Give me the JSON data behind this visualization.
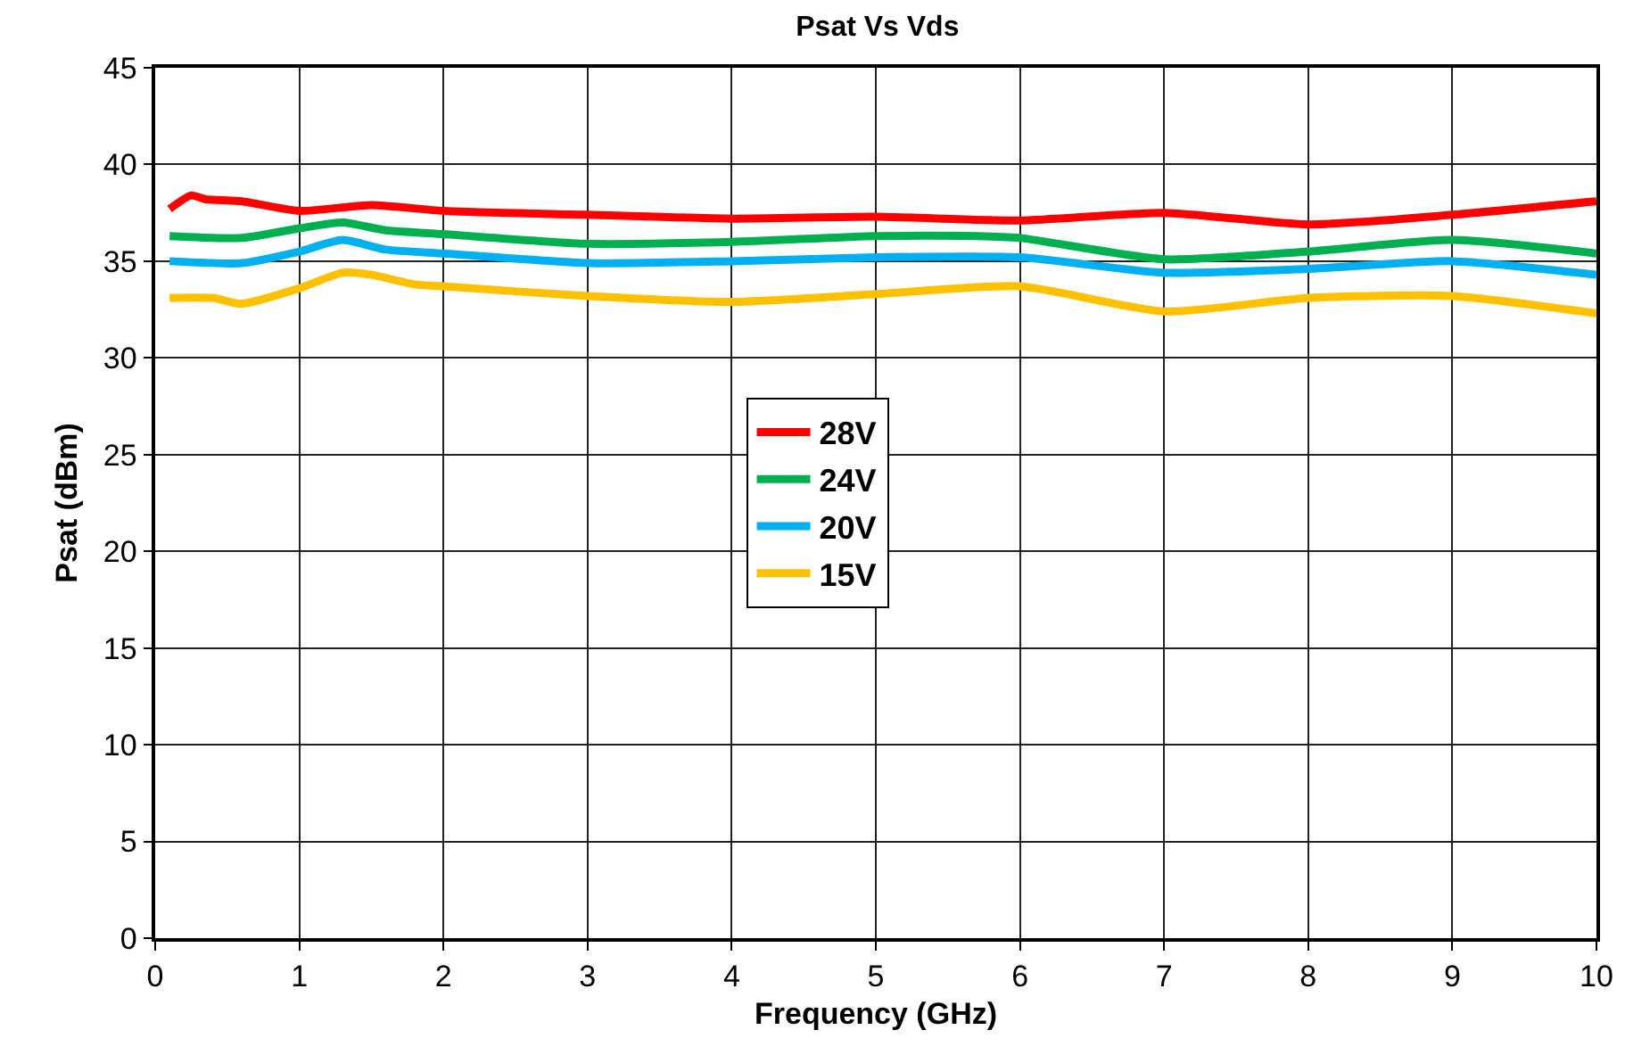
{
  "chart_data": {
    "type": "line",
    "title": "Psat Vs Vds",
    "xlabel": "Frequency (GHz)",
    "ylabel": "Psat (dBm)",
    "xlim": [
      0,
      10
    ],
    "xticks": [
      0,
      1,
      2,
      3,
      4,
      5,
      6,
      7,
      8,
      9,
      10
    ],
    "ylim": [
      0,
      45
    ],
    "yticks": [
      0,
      5,
      10,
      15,
      20,
      25,
      30,
      35,
      40,
      45
    ],
    "grid": true,
    "legend": "center",
    "marker": "none",
    "line_style": "solid",
    "series": [
      {
        "name": "28V",
        "color": "#ff0000",
        "x": [
          0.1,
          0.25,
          0.35,
          0.6,
          1,
          1.5,
          2,
          3,
          4,
          5,
          6,
          7,
          8,
          9,
          10
        ],
        "values": [
          37.7,
          38.4,
          38.2,
          38.1,
          37.6,
          37.9,
          37.6,
          37.4,
          37.2,
          37.3,
          37.1,
          37.5,
          36.9,
          37.4,
          38.1
        ]
      },
      {
        "name": "24V",
        "color": "#00b050",
        "x": [
          0.1,
          0.6,
          1,
          1.3,
          1.6,
          2,
          3,
          4,
          5,
          5.7,
          6,
          7,
          8,
          9,
          10
        ],
        "values": [
          36.3,
          36.2,
          36.7,
          37.0,
          36.6,
          36.4,
          35.9,
          36.0,
          36.3,
          36.3,
          36.2,
          35.1,
          35.5,
          36.1,
          35.4
        ]
      },
      {
        "name": "20V",
        "color": "#00b0f0",
        "x": [
          0.1,
          0.6,
          1,
          1.3,
          1.6,
          2,
          3,
          4,
          5,
          6,
          7,
          8,
          9,
          10
        ],
        "values": [
          35.0,
          34.9,
          35.5,
          36.1,
          35.6,
          35.4,
          34.9,
          35.0,
          35.2,
          35.2,
          34.4,
          34.6,
          35.0,
          34.3
        ]
      },
      {
        "name": "15V",
        "color": "#ffc000",
        "x": [
          0.1,
          0.4,
          0.6,
          1,
          1.3,
          1.5,
          1.8,
          2,
          3,
          4,
          5,
          6,
          7,
          8,
          9,
          10
        ],
        "values": [
          33.1,
          33.1,
          32.8,
          33.6,
          34.4,
          34.3,
          33.8,
          33.7,
          33.2,
          32.9,
          33.3,
          33.7,
          32.4,
          33.1,
          33.2,
          32.3
        ]
      }
    ]
  }
}
